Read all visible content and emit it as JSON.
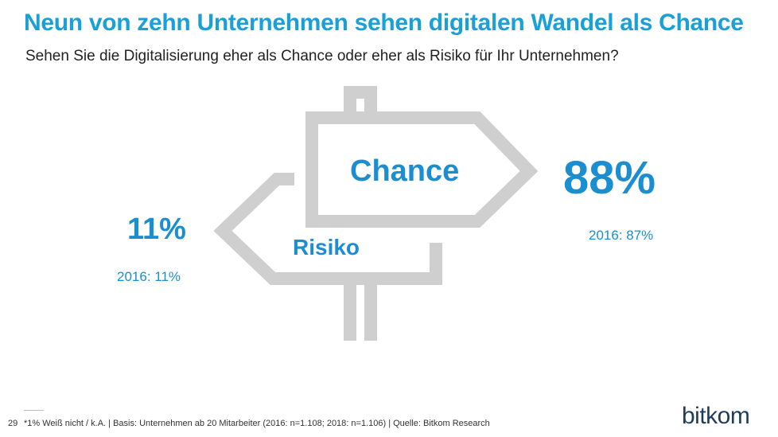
{
  "header": {
    "title": "Neun von zehn Unternehmen sehen digitalen Wandel als Chance",
    "subtitle": "Sehen Sie die Digitalisierung eher als Chance oder eher als Risiko für Ihr Unternehmen?"
  },
  "chart_data": {
    "type": "other",
    "categories": [
      "Chance",
      "Risiko"
    ],
    "series": [
      {
        "name": "2018",
        "values": [
          88,
          11
        ]
      },
      {
        "name": "2016",
        "values": [
          87,
          11
        ]
      }
    ],
    "unit": "%"
  },
  "labels": {
    "chance": "Chance",
    "risiko": "Risiko",
    "chance_value": "88%",
    "risiko_value": "11%",
    "chance_prev": "2016: 87%",
    "risiko_prev": "2016: 11%"
  },
  "footer": {
    "page_number": "29",
    "note": "*1% Weiß nicht / k.A. | Basis: Unternehmen ab 20 Mitarbeiter (2016: n=1.108; 2018: n=1.106) | Quelle: Bitkom Research",
    "logo": "bitkom"
  },
  "colors": {
    "accent": "#1a8ed0",
    "title": "#1aa0d8",
    "sign": "#cfcfcf",
    "logo": "#1f3c5c"
  }
}
